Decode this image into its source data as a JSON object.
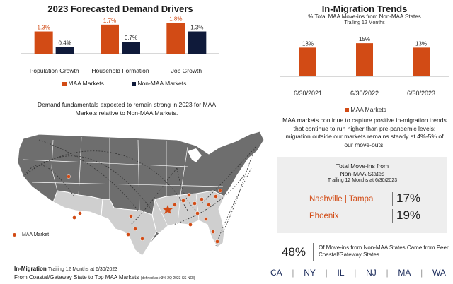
{
  "colors": {
    "maa": "#d24b15",
    "non_maa": "#0f1a3a",
    "gray_box": "#eeeeee"
  },
  "drivers": {
    "title": "2023 Forecasted Demand Drivers",
    "legend": [
      "MAA Markets",
      "Non-MAA Markets"
    ],
    "caption": "Demand fundamentals expected to remain strong in 2023 for MAA Markets relative to Non-MAA Markets."
  },
  "trends": {
    "title": "In-Migration Trends",
    "subtitle": "% Total MAA Move-ins from Non-MAA States",
    "subtitle2": "Trailing 12 Months",
    "legend": "MAA Markets",
    "caption": "MAA markets continue to capture positive in-migration trends that continue to run higher than pre-pandemic levels; migration outside our markets remains steady at 4%-5% of our move-outs."
  },
  "move_ins_box": {
    "title": "Total Move-ins from",
    "title2": "Non-MAA States",
    "subtitle": "Trailing 12 Months at 6/30/2023",
    "rows": [
      {
        "label": "Nashville | Tampa",
        "value": "17%"
      },
      {
        "label": "Phoenix",
        "value": "19%"
      }
    ]
  },
  "coastal": {
    "pct": "48%",
    "text": "Of Move-ins from Non-MAA States Came from Peer Coastal/Gateway States",
    "states": [
      "CA",
      "NY",
      "IL",
      "NJ",
      "MA",
      "WA"
    ]
  },
  "map": {
    "legend": "MAA Market",
    "caption_bold": "In-Migration",
    "caption_small": "Trailing 12 Months at 6/30/2023",
    "caption_line2": "From Coastal/Gateway State to Top MAA Markets",
    "caption_note": "(defined as >3% 2Q 2023 SS NOI)"
  },
  "chart_data": [
    {
      "type": "bar",
      "title": "2023 Forecasted Demand Drivers",
      "categories": [
        "Population Growth",
        "Household Formation",
        "Job Growth"
      ],
      "series": [
        {
          "name": "MAA Markets",
          "values": [
            1.3,
            1.7,
            1.8
          ],
          "labels": [
            "1.3%",
            "1.7%",
            "1.8%"
          ]
        },
        {
          "name": "Non-MAA Markets",
          "values": [
            0.4,
            0.7,
            1.3
          ],
          "labels": [
            "0.4%",
            "0.7%",
            "1.3%"
          ]
        }
      ],
      "ylim": [
        0,
        1.9
      ],
      "xlabel": "",
      "ylabel": "",
      "legend": "bottom"
    },
    {
      "type": "bar",
      "title": "In-Migration Trends",
      "categories": [
        "6/30/2021",
        "6/30/2022",
        "6/30/2023"
      ],
      "series": [
        {
          "name": "MAA Markets",
          "values": [
            13,
            15,
            13
          ],
          "labels": [
            "13%",
            "15%",
            "13%"
          ]
        }
      ],
      "ylim": [
        0,
        16
      ],
      "xlabel": "",
      "ylabel": "",
      "legend": "bottom"
    }
  ]
}
